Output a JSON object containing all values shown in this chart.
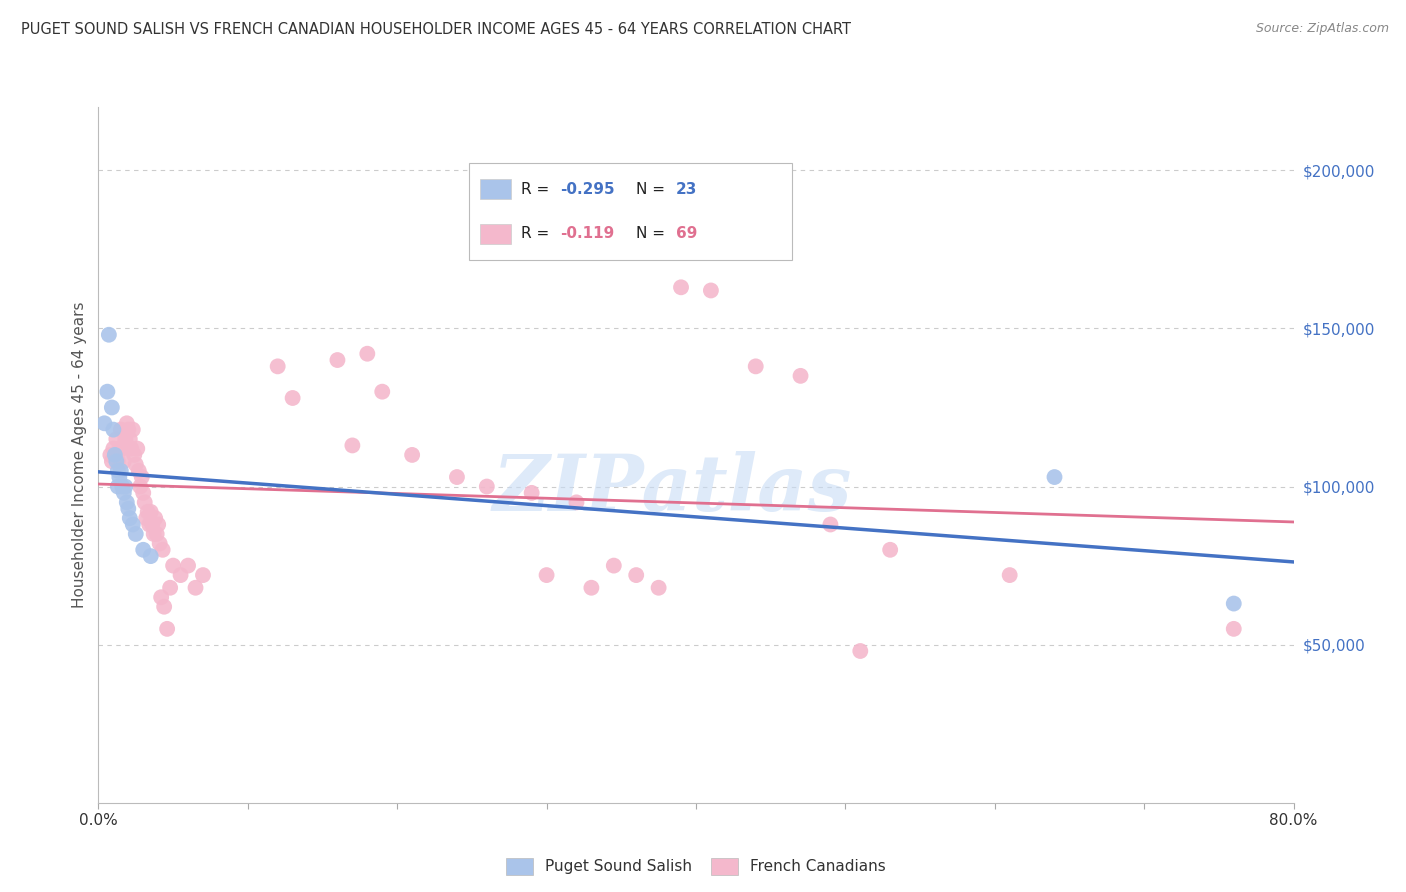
{
  "title": "PUGET SOUND SALISH VS FRENCH CANADIAN HOUSEHOLDER INCOME AGES 45 - 64 YEARS CORRELATION CHART",
  "source": "Source: ZipAtlas.com",
  "ylabel": "Householder Income Ages 45 - 64 years",
  "x_min": 0.0,
  "x_max": 0.8,
  "y_min": 0,
  "y_max": 220000,
  "x_ticks": [
    0.0,
    0.1,
    0.2,
    0.3,
    0.4,
    0.5,
    0.6,
    0.7,
    0.8
  ],
  "x_tick_labels": [
    "0.0%",
    "",
    "",
    "",
    "",
    "",
    "",
    "",
    "80.0%"
  ],
  "y_ticks_right": [
    50000,
    100000,
    150000,
    200000
  ],
  "y_tick_labels_right": [
    "$50,000",
    "$100,000",
    "$150,000",
    "$200,000"
  ],
  "legend_label1": "Puget Sound Salish",
  "legend_label2": "French Canadians",
  "watermark": "ZIPatlas",
  "blue_color": "#aac4ea",
  "blue_line_color": "#4472c4",
  "pink_color": "#f4b8cc",
  "pink_line_color": "#e07090",
  "blue_scatter": [
    [
      0.004,
      120000
    ],
    [
      0.006,
      130000
    ],
    [
      0.007,
      148000
    ],
    [
      0.009,
      125000
    ],
    [
      0.01,
      118000
    ],
    [
      0.011,
      110000
    ],
    [
      0.012,
      108000
    ],
    [
      0.013,
      105000
    ],
    [
      0.013,
      100000
    ],
    [
      0.014,
      103000
    ],
    [
      0.015,
      105000
    ],
    [
      0.016,
      100000
    ],
    [
      0.017,
      98000
    ],
    [
      0.018,
      100000
    ],
    [
      0.019,
      95000
    ],
    [
      0.02,
      93000
    ],
    [
      0.021,
      90000
    ],
    [
      0.023,
      88000
    ],
    [
      0.025,
      85000
    ],
    [
      0.03,
      80000
    ],
    [
      0.035,
      78000
    ],
    [
      0.64,
      103000
    ],
    [
      0.76,
      63000
    ]
  ],
  "pink_scatter": [
    [
      0.008,
      110000
    ],
    [
      0.009,
      108000
    ],
    [
      0.01,
      112000
    ],
    [
      0.011,
      110000
    ],
    [
      0.012,
      115000
    ],
    [
      0.013,
      108000
    ],
    [
      0.014,
      112000
    ],
    [
      0.015,
      118000
    ],
    [
      0.016,
      112000
    ],
    [
      0.017,
      108000
    ],
    [
      0.018,
      115000
    ],
    [
      0.019,
      120000
    ],
    [
      0.02,
      118000
    ],
    [
      0.021,
      115000
    ],
    [
      0.022,
      112000
    ],
    [
      0.023,
      118000
    ],
    [
      0.024,
      110000
    ],
    [
      0.025,
      107000
    ],
    [
      0.026,
      112000
    ],
    [
      0.027,
      105000
    ],
    [
      0.028,
      100000
    ],
    [
      0.029,
      103000
    ],
    [
      0.03,
      98000
    ],
    [
      0.031,
      95000
    ],
    [
      0.032,
      90000
    ],
    [
      0.033,
      92000
    ],
    [
      0.034,
      88000
    ],
    [
      0.035,
      92000
    ],
    [
      0.036,
      88000
    ],
    [
      0.037,
      85000
    ],
    [
      0.038,
      90000
    ],
    [
      0.039,
      85000
    ],
    [
      0.04,
      88000
    ],
    [
      0.041,
      82000
    ],
    [
      0.042,
      65000
    ],
    [
      0.043,
      80000
    ],
    [
      0.044,
      62000
    ],
    [
      0.046,
      55000
    ],
    [
      0.048,
      68000
    ],
    [
      0.05,
      75000
    ],
    [
      0.055,
      72000
    ],
    [
      0.06,
      75000
    ],
    [
      0.065,
      68000
    ],
    [
      0.07,
      72000
    ],
    [
      0.12,
      138000
    ],
    [
      0.13,
      128000
    ],
    [
      0.16,
      140000
    ],
    [
      0.17,
      113000
    ],
    [
      0.18,
      142000
    ],
    [
      0.19,
      130000
    ],
    [
      0.21,
      110000
    ],
    [
      0.24,
      103000
    ],
    [
      0.26,
      100000
    ],
    [
      0.29,
      98000
    ],
    [
      0.3,
      72000
    ],
    [
      0.32,
      95000
    ],
    [
      0.33,
      68000
    ],
    [
      0.345,
      75000
    ],
    [
      0.36,
      72000
    ],
    [
      0.375,
      68000
    ],
    [
      0.39,
      163000
    ],
    [
      0.41,
      162000
    ],
    [
      0.44,
      138000
    ],
    [
      0.47,
      135000
    ],
    [
      0.49,
      88000
    ],
    [
      0.51,
      48000
    ],
    [
      0.53,
      80000
    ],
    [
      0.61,
      72000
    ],
    [
      0.76,
      55000
    ]
  ],
  "background_color": "#ffffff",
  "grid_color": "#cccccc"
}
